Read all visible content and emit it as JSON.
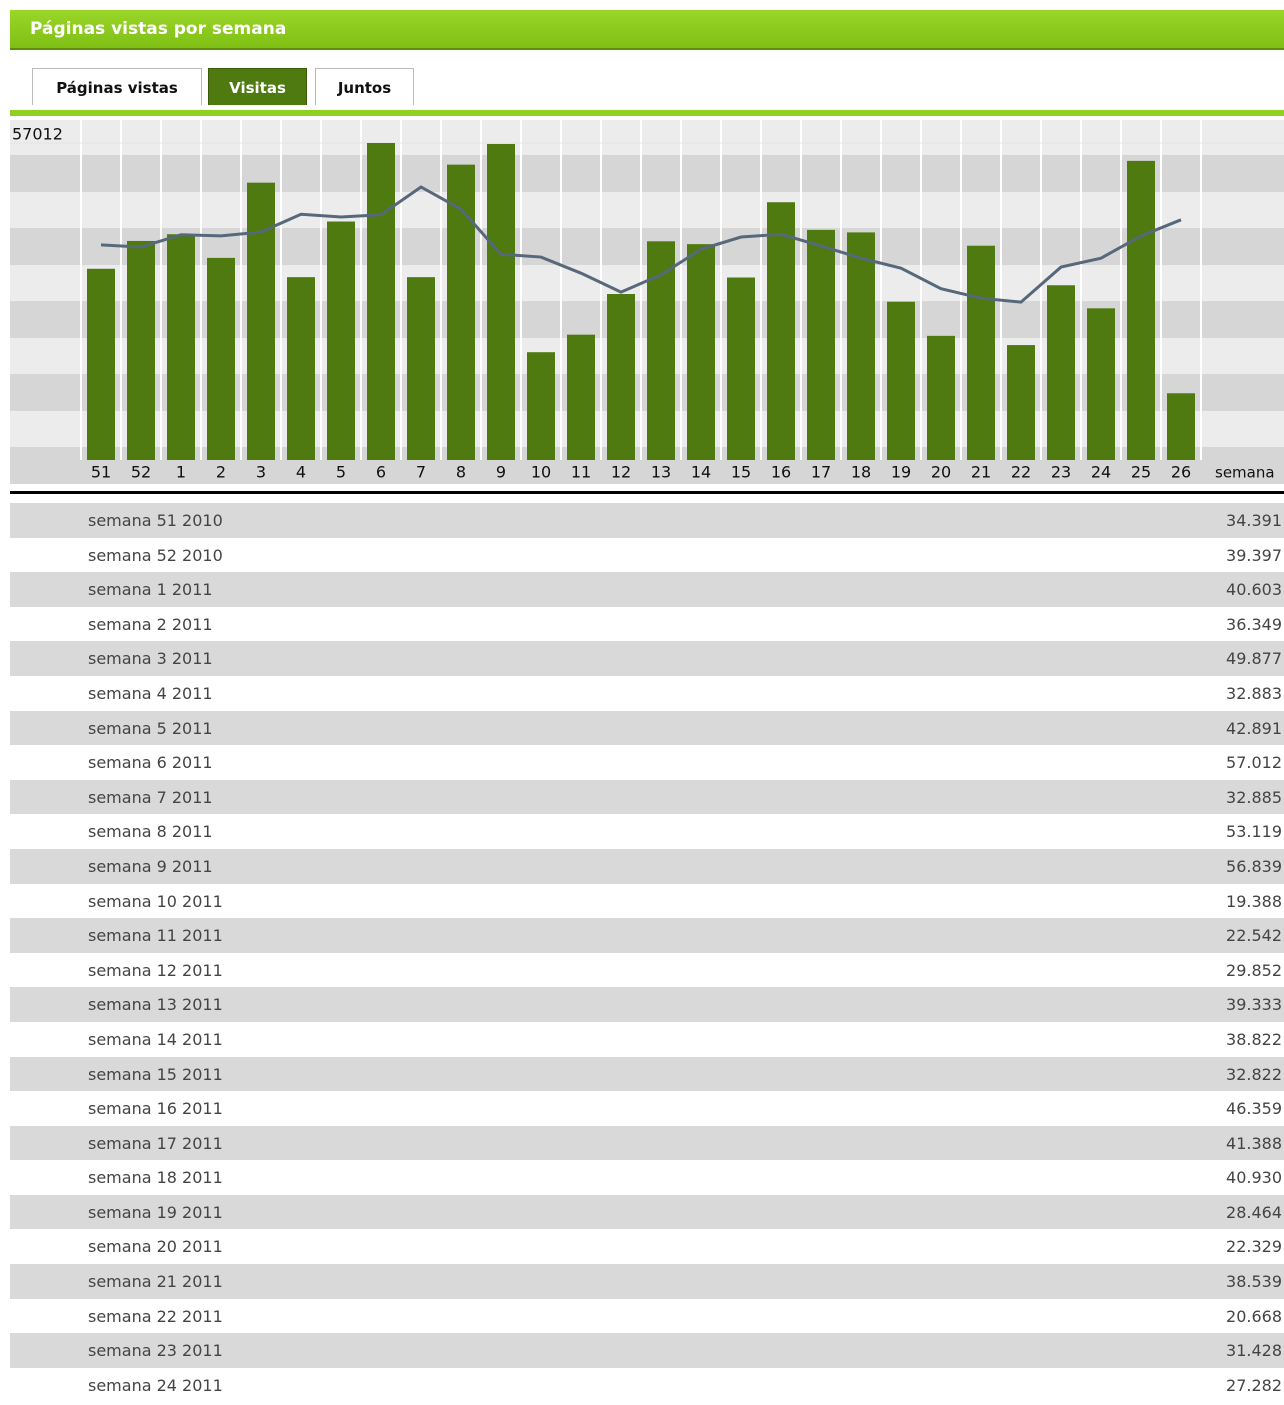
{
  "header": {
    "title": "Páginas vistas por semana"
  },
  "tabs": [
    "Páginas vistas",
    "Visitas",
    "Juntos"
  ],
  "active_tab": 1,
  "chart_data": {
    "type": "bar",
    "categories": [
      "51",
      "52",
      "1",
      "2",
      "3",
      "4",
      "5",
      "6",
      "7",
      "8",
      "9",
      "10",
      "11",
      "12",
      "13",
      "14",
      "15",
      "16",
      "17",
      "18",
      "19",
      "20",
      "21",
      "22",
      "23",
      "24",
      "25",
      "26"
    ],
    "x_label": "semana",
    "ylim": [
      0,
      57012
    ],
    "yticks": [
      57012
    ],
    "series": [
      {
        "type": "bar",
        "color": "#4e7a0f",
        "values": [
          34391,
          39397,
          40603,
          36349,
          49877,
          32883,
          42891,
          57012,
          32885,
          53119,
          56839,
          19388,
          22542,
          29852,
          39333,
          38822,
          32822,
          46359,
          41388,
          40930,
          28464,
          22329,
          38539,
          20668,
          31428,
          27282,
          53800,
          12000
        ]
      },
      {
        "type": "line",
        "color": "#56687a",
        "values": [
          38700,
          38300,
          40500,
          40300,
          41000,
          44200,
          43700,
          44100,
          49100,
          45100,
          37000,
          36500,
          33600,
          30200,
          33300,
          37900,
          40100,
          40600,
          38500,
          36300,
          34500,
          30800,
          29100,
          28400,
          34700,
          36300,
          40300,
          43200
        ]
      }
    ]
  },
  "table": {
    "rows": [
      [
        "semana 51 2010",
        "34.391"
      ],
      [
        "semana 52 2010",
        "39.397"
      ],
      [
        "semana 1 2011",
        "40.603"
      ],
      [
        "semana 2 2011",
        "36.349"
      ],
      [
        "semana 3 2011",
        "49.877"
      ],
      [
        "semana 4 2011",
        "32.883"
      ],
      [
        "semana 5 2011",
        "42.891"
      ],
      [
        "semana 6 2011",
        "57.012"
      ],
      [
        "semana 7 2011",
        "32.885"
      ],
      [
        "semana 8 2011",
        "53.119"
      ],
      [
        "semana 9 2011",
        "56.839"
      ],
      [
        "semana 10 2011",
        "19.388"
      ],
      [
        "semana 11 2011",
        "22.542"
      ],
      [
        "semana 12 2011",
        "29.852"
      ],
      [
        "semana 13 2011",
        "39.333"
      ],
      [
        "semana 14 2011",
        "38.822"
      ],
      [
        "semana 15 2011",
        "32.822"
      ],
      [
        "semana 16 2011",
        "46.359"
      ],
      [
        "semana 17 2011",
        "41.388"
      ],
      [
        "semana 18 2011",
        "40.930"
      ],
      [
        "semana 19 2011",
        "28.464"
      ],
      [
        "semana 20 2011",
        "22.329"
      ],
      [
        "semana 21 2011",
        "38.539"
      ],
      [
        "semana 22 2011",
        "20.668"
      ],
      [
        "semana 23 2011",
        "31.428"
      ],
      [
        "semana 24 2011",
        "27.282"
      ]
    ]
  }
}
